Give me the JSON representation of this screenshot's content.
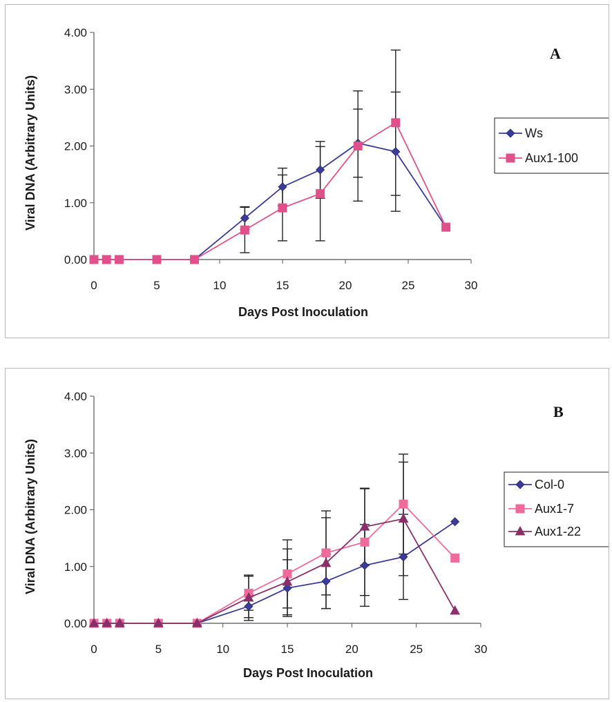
{
  "chart_data": [
    {
      "type": "line",
      "panel_label": "A",
      "xlabel": "Days Post Inoculation",
      "ylabel": "Viral DNA (Arbitrary Units)",
      "xlim": [
        0,
        30
      ],
      "ylim": [
        0,
        4
      ],
      "x_ticks": [
        "0",
        "5",
        "10",
        "15",
        "20",
        "25",
        "30"
      ],
      "y_ticks": [
        "0.00",
        "1.00",
        "2.00",
        "3.00",
        "4.00"
      ],
      "grid": false,
      "legend_position": "right",
      "series": [
        {
          "name": "Ws",
          "color": "#3b3b9a",
          "marker": "diamond",
          "x": [
            0,
            1,
            2,
            5,
            8,
            12,
            15,
            18,
            21,
            24,
            28
          ],
          "y": [
            0,
            0,
            0,
            0,
            0,
            0.73,
            1.28,
            1.58,
            2.05,
            1.9,
            0.57
          ],
          "err": [
            0,
            0,
            0,
            0,
            0,
            0.2,
            0.33,
            0.5,
            0.6,
            1.05,
            0
          ]
        },
        {
          "name": "Aux1-100",
          "color": "#e0508a",
          "marker": "square",
          "x": [
            0,
            1,
            2,
            5,
            8,
            12,
            15,
            18,
            21,
            24,
            28
          ],
          "y": [
            0,
            0,
            0,
            0,
            0,
            0.52,
            0.91,
            1.16,
            2.0,
            2.41,
            0.57
          ],
          "err": [
            0,
            0,
            0,
            0,
            0,
            0.4,
            0.58,
            0.83,
            0.97,
            1.28,
            0
          ]
        }
      ]
    },
    {
      "type": "line",
      "panel_label": "B",
      "xlabel": "Days Post Inoculation",
      "ylabel": "Viral DNA (Arbitrary Units)",
      "xlim": [
        0,
        30
      ],
      "ylim": [
        0,
        4
      ],
      "x_ticks": [
        "0",
        "5",
        "10",
        "15",
        "20",
        "25",
        "30"
      ],
      "y_ticks": [
        "0.00",
        "1.00",
        "2.00",
        "3.00",
        "4.00"
      ],
      "grid": false,
      "legend_position": "right",
      "series": [
        {
          "name": "Col-0",
          "color": "#3b3b9a",
          "marker": "diamond",
          "x": [
            0,
            1,
            2,
            5,
            8,
            12,
            15,
            18,
            21,
            24,
            28
          ],
          "y": [
            0,
            0,
            0,
            0,
            0,
            0.3,
            0.62,
            0.74,
            1.02,
            1.17,
            1.79
          ],
          "err": [
            0,
            0,
            0,
            0,
            0,
            0.2,
            0.5,
            0.48,
            0.72,
            0.75,
            0
          ]
        },
        {
          "name": "Aux1-7",
          "color": "#f06a9c",
          "marker": "square",
          "x": [
            0,
            1,
            2,
            5,
            8,
            12,
            15,
            18,
            21,
            24,
            28
          ],
          "y": [
            0,
            0,
            0,
            0,
            0,
            0.53,
            0.87,
            1.24,
            1.43,
            2.1,
            1.15
          ],
          "err": [
            0,
            0,
            0,
            0,
            0,
            0.3,
            0.6,
            0.74,
            0.94,
            0.88,
            0
          ]
        },
        {
          "name": "Aux1-22",
          "color": "#8a2f6a",
          "marker": "triangle",
          "x": [
            0,
            1,
            2,
            5,
            8,
            12,
            15,
            18,
            21,
            24,
            28
          ],
          "y": [
            0,
            0,
            0,
            0,
            0,
            0.45,
            0.73,
            1.06,
            1.7,
            1.84,
            0.22
          ],
          "err": [
            0,
            0,
            0,
            0,
            0,
            0.4,
            0.58,
            0.8,
            0.68,
            1.0,
            0
          ]
        }
      ]
    }
  ]
}
